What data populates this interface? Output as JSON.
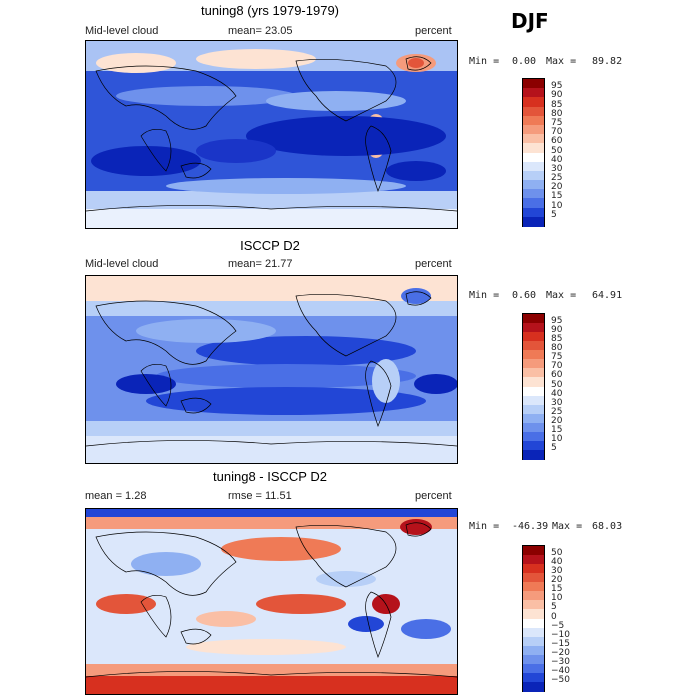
{
  "season": "DJF",
  "panels": [
    {
      "title": "tuning8 (yrs 1979-1979)",
      "left_label": "Mid-level cloud",
      "center_label": "mean=  23.05",
      "right_label": "percent",
      "min_label": "Min =",
      "min_value": "0.00",
      "max_label": "Max =",
      "max_value": "89.82",
      "colorbar": {
        "ticks": [
          "95",
          "90",
          "85",
          "80",
          "75",
          "70",
          "60",
          "50",
          "40",
          "30",
          "25",
          "20",
          "15",
          "10",
          "5"
        ],
        "colors": [
          "#8b0000",
          "#b5121b",
          "#d7301f",
          "#e3553a",
          "#ef7a56",
          "#f59b7c",
          "#fabfa5",
          "#fde3d3",
          "#ffffff",
          "#dbe7fb",
          "#b7cff7",
          "#8fb0f2",
          "#6e91ec",
          "#4a6fe6",
          "#2246d6",
          "#0a24b8"
        ]
      }
    },
    {
      "title": "ISCCP D2",
      "left_label": "Mid-level cloud",
      "center_label": "mean=  21.77",
      "right_label": "percent",
      "min_label": "Min =",
      "min_value": "0.60",
      "max_label": "Max =",
      "max_value": "64.91",
      "colorbar": {
        "ticks": [
          "95",
          "90",
          "85",
          "80",
          "75",
          "70",
          "60",
          "50",
          "40",
          "30",
          "25",
          "20",
          "15",
          "10",
          "5"
        ],
        "colors": [
          "#8b0000",
          "#b5121b",
          "#d7301f",
          "#e3553a",
          "#ef7a56",
          "#f59b7c",
          "#fabfa5",
          "#fde3d3",
          "#ffffff",
          "#dbe7fb",
          "#b7cff7",
          "#8fb0f2",
          "#6e91ec",
          "#4a6fe6",
          "#2246d6",
          "#0a24b8"
        ]
      }
    },
    {
      "title": "tuning8 - ISCCP D2",
      "left_label": "mean =    1.28",
      "center_label": "rmse =  11.51",
      "right_label": "percent",
      "min_label": "Min = ",
      "min_value": "-46.39",
      "max_label": "Max =",
      "max_value": "68.03",
      "colorbar": {
        "ticks": [
          "50",
          "40",
          "30",
          "20",
          "15",
          "10",
          "5",
          "0",
          "−5",
          "−10",
          "−15",
          "−20",
          "−30",
          "−40",
          "−50"
        ],
        "colors": [
          "#8b0000",
          "#b5121b",
          "#d7301f",
          "#e3553a",
          "#ef7a56",
          "#f59b7c",
          "#fabfa5",
          "#fde3d3",
          "#ffffff",
          "#dbe7fb",
          "#b7cff7",
          "#8fb0f2",
          "#6e91ec",
          "#4a6fe6",
          "#2246d6",
          "#0a24b8"
        ]
      }
    }
  ]
}
